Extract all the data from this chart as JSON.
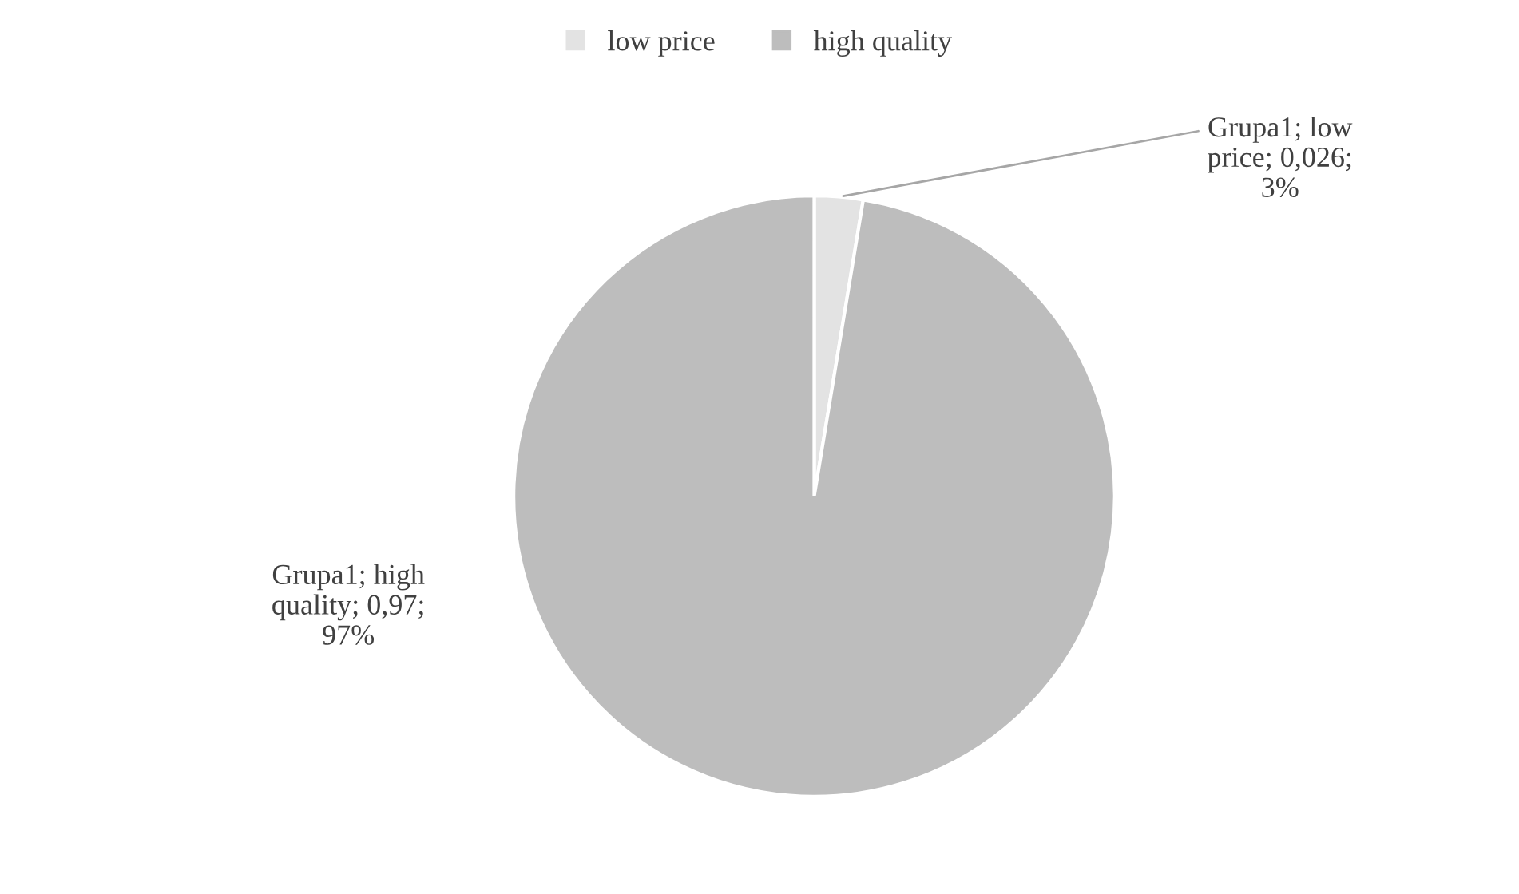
{
  "chart_data": {
    "type": "pie",
    "categories": [
      "low price",
      "high quality"
    ],
    "values": [
      0.026,
      0.97
    ],
    "colors": [
      "#e3e3e3",
      "#bdbdbd"
    ],
    "value_labels": [
      "Grupa1; low price; 0,026; 3%",
      "Grupa1; high quality; 0,97; 97%"
    ],
    "legend": "top"
  }
}
